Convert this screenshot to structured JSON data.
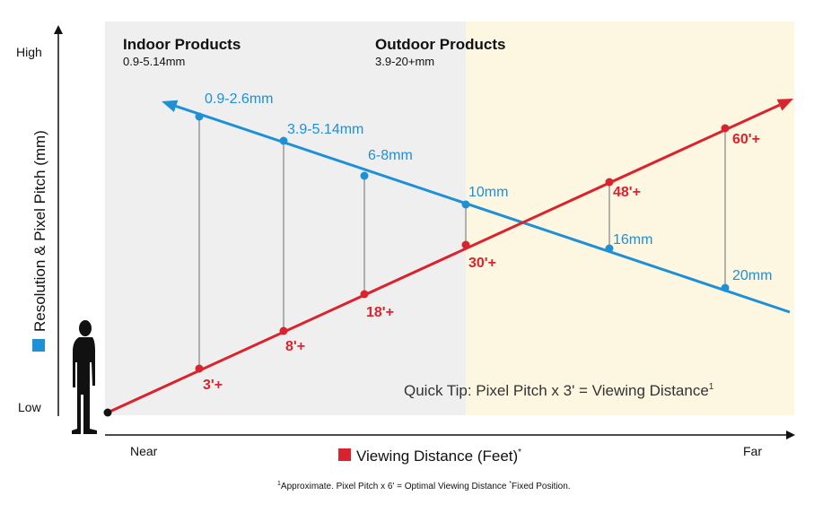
{
  "colors": {
    "pitch_line": "#1e90d6",
    "distance_line": "#d9232e",
    "indoor_bg": "#efefef",
    "outdoor_bg": "#fdf6e1",
    "connector": "#999999",
    "axis": "#111111"
  },
  "regions": {
    "indoor": {
      "title": "Indoor Products",
      "range": "0.9-5.14mm"
    },
    "outdoor": {
      "title": "Outdoor Products",
      "range": "3.9-20+mm"
    }
  },
  "y_axis": {
    "title": "Resolution & Pixel Pitch (mm)",
    "high": "High",
    "low": "Low",
    "marker_color": "#1e90d6"
  },
  "x_axis": {
    "title": "Viewing Distance (Feet)",
    "title_suffix": "*",
    "near": "Near",
    "far": "Far",
    "marker_color": "#d9232e"
  },
  "chart_data": {
    "type": "line",
    "series": [
      {
        "name": "Resolution & Pixel Pitch (mm)",
        "points": [
          {
            "label": "0.9-2.6mm"
          },
          {
            "label": "3.9-5.14mm"
          },
          {
            "label": "6-8mm"
          },
          {
            "label": "10mm"
          },
          {
            "label": "16mm"
          },
          {
            "label": "20mm"
          }
        ]
      },
      {
        "name": "Viewing Distance (Feet)",
        "points": [
          {
            "label": "3'+"
          },
          {
            "label": "8'+"
          },
          {
            "label": "18'+"
          },
          {
            "label": "30'+"
          },
          {
            "label": "48'+"
          },
          {
            "label": "60'+"
          }
        ]
      }
    ]
  },
  "tip": {
    "text": "Quick Tip: Pixel Pitch x 3' = Viewing Distance",
    "sup": "1"
  },
  "footnote": {
    "sup1": "1",
    "text1": "Approximate. Pixel Pitch x 6' = Optimal Viewing Distance ",
    "sup2": "*",
    "text2": "Fixed Position."
  }
}
